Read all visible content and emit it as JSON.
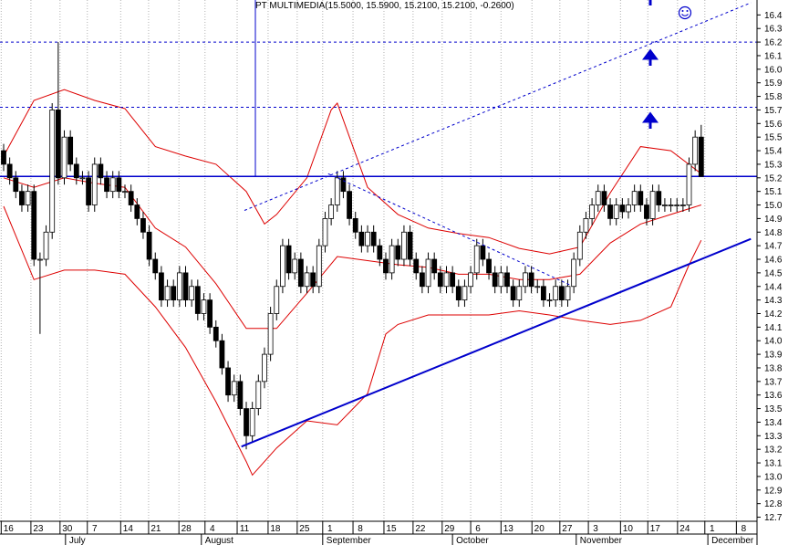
{
  "chart_data": {
    "type": "candlestick",
    "title": "PT MULTIMEDIA(15.5000, 15.5900, 15.2100, 15.2100, -0.2600)",
    "open": [
      15.4,
      15.3,
      15.2,
      15.1,
      15.0,
      15.1,
      14.6,
      14.6,
      14.8,
      15.7,
      15.2,
      15.5,
      15.3,
      15.2,
      15.2,
      15.0,
      15.3,
      15.2,
      15.1,
      15.2,
      15.1,
      15.1,
      15.0,
      14.9,
      14.8,
      14.6,
      14.5,
      14.3,
      14.4,
      14.3,
      14.5,
      14.3,
      14.4,
      14.2,
      14.3,
      14.1,
      14.0,
      13.8,
      13.6,
      13.7,
      13.5,
      13.3,
      13.5,
      13.7,
      13.9,
      14.2,
      14.4,
      14.7,
      14.5,
      14.6,
      14.4,
      14.5,
      14.4,
      14.7,
      14.9,
      15.0,
      15.2,
      15.1,
      14.9,
      14.8,
      14.7,
      14.8,
      14.7,
      14.6,
      14.5,
      14.7,
      14.6,
      14.8,
      14.6,
      14.5,
      14.4,
      14.6,
      14.5,
      14.4,
      14.5,
      14.4,
      14.3,
      14.4,
      14.5,
      14.7,
      14.6,
      14.5,
      14.4,
      14.5,
      14.4,
      14.3,
      14.4,
      14.5,
      14.4,
      14.4,
      14.3,
      14.3,
      14.4,
      14.3,
      14.4,
      14.6,
      14.8,
      14.9,
      15.0,
      15.1,
      15.0,
      14.9,
      15.0,
      14.95,
      15.0,
      15.1,
      15.0,
      14.9,
      15.1,
      15.0,
      15.0,
      15.0,
      15.0,
      15.0,
      15.3,
      15.5
    ],
    "high": [
      15.45,
      15.35,
      15.25,
      15.15,
      15.15,
      15.15,
      14.65,
      14.85,
      15.75,
      16.2,
      15.55,
      15.55,
      15.35,
      15.25,
      15.25,
      15.35,
      15.35,
      15.25,
      15.25,
      15.25,
      15.15,
      15.15,
      15.05,
      14.95,
      14.85,
      14.65,
      14.55,
      14.45,
      14.45,
      14.55,
      14.55,
      14.45,
      14.45,
      14.35,
      14.35,
      14.15,
      14.05,
      13.85,
      13.75,
      13.75,
      13.55,
      13.55,
      13.75,
      13.95,
      14.25,
      14.45,
      14.75,
      14.75,
      14.65,
      14.65,
      14.55,
      14.55,
      14.75,
      14.95,
      15.05,
      15.25,
      15.25,
      15.15,
      14.95,
      14.85,
      14.85,
      14.85,
      14.75,
      14.65,
      14.75,
      14.75,
      14.85,
      14.85,
      14.65,
      14.55,
      14.65,
      14.65,
      14.55,
      14.55,
      14.55,
      14.45,
      14.45,
      14.55,
      14.75,
      14.75,
      14.65,
      14.55,
      14.55,
      14.55,
      14.45,
      14.45,
      14.55,
      14.55,
      14.45,
      14.45,
      14.35,
      14.45,
      14.45,
      14.45,
      14.65,
      14.85,
      14.95,
      15.05,
      15.15,
      15.15,
      15.05,
      15.05,
      15.05,
      15.05,
      15.15,
      15.15,
      15.05,
      15.15,
      15.15,
      15.05,
      15.05,
      15.05,
      15.05,
      15.35,
      15.55,
      15.59
    ],
    "low": [
      15.25,
      15.15,
      15.05,
      14.95,
      14.95,
      14.55,
      14.05,
      14.55,
      14.75,
      15.15,
      15.15,
      15.25,
      15.15,
      15.15,
      14.95,
      14.95,
      15.15,
      15.05,
      15.05,
      15.05,
      15.05,
      14.95,
      14.85,
      14.75,
      14.55,
      14.45,
      14.25,
      14.25,
      14.25,
      14.25,
      14.25,
      14.25,
      14.15,
      14.15,
      14.05,
      13.95,
      13.75,
      13.55,
      13.55,
      13.45,
      13.2,
      13.25,
      13.45,
      13.65,
      13.85,
      14.15,
      14.35,
      14.45,
      14.45,
      14.35,
      14.35,
      14.35,
      14.35,
      14.65,
      14.85,
      14.95,
      15.05,
      14.85,
      14.75,
      14.65,
      14.65,
      14.65,
      14.55,
      14.45,
      14.45,
      14.55,
      14.55,
      14.55,
      14.45,
      14.35,
      14.35,
      14.45,
      14.35,
      14.35,
      14.35,
      14.25,
      14.25,
      14.35,
      14.45,
      14.55,
      14.45,
      14.35,
      14.35,
      14.35,
      14.25,
      14.25,
      14.35,
      14.35,
      14.35,
      14.25,
      14.25,
      14.25,
      14.25,
      14.25,
      14.35,
      14.55,
      14.75,
      14.85,
      14.95,
      14.95,
      14.85,
      14.85,
      14.9,
      14.9,
      14.95,
      14.95,
      14.85,
      14.85,
      14.95,
      14.95,
      14.95,
      14.95,
      14.95,
      14.95,
      15.25,
      15.21
    ],
    "close": [
      15.3,
      15.2,
      15.1,
      15.0,
      15.1,
      14.6,
      14.6,
      14.8,
      15.7,
      15.2,
      15.5,
      15.3,
      15.2,
      15.2,
      15.0,
      15.3,
      15.2,
      15.1,
      15.2,
      15.1,
      15.1,
      15.0,
      14.9,
      14.8,
      14.6,
      14.5,
      14.3,
      14.4,
      14.3,
      14.5,
      14.3,
      14.4,
      14.2,
      14.3,
      14.1,
      14.0,
      13.8,
      13.6,
      13.7,
      13.5,
      13.3,
      13.5,
      13.7,
      13.9,
      14.2,
      14.4,
      14.7,
      14.5,
      14.6,
      14.4,
      14.5,
      14.4,
      14.7,
      14.9,
      15.0,
      15.2,
      15.1,
      14.9,
      14.8,
      14.7,
      14.8,
      14.7,
      14.6,
      14.5,
      14.7,
      14.6,
      14.8,
      14.6,
      14.5,
      14.4,
      14.6,
      14.5,
      14.4,
      14.5,
      14.4,
      14.3,
      14.4,
      14.5,
      14.7,
      14.6,
      14.5,
      14.4,
      14.5,
      14.4,
      14.3,
      14.4,
      14.5,
      14.4,
      14.4,
      14.3,
      14.3,
      14.4,
      14.3,
      14.4,
      14.6,
      14.8,
      14.9,
      15.0,
      15.1,
      15.0,
      14.9,
      15.0,
      14.95,
      15.0,
      15.1,
      15.0,
      14.9,
      15.1,
      15.0,
      15.0,
      15.0,
      15.0,
      15.0,
      15.3,
      15.5,
      15.21
    ],
    "up_color": "#ffffff",
    "down_color": "#000000",
    "xlim": [
      -0.6,
      124.2
    ],
    "ylim": [
      12.67,
      16.51
    ],
    "yticks": [
      16.4,
      16.3,
      16.2,
      16.1,
      {
        "value": 16,
        "label": "16.0"
      },
      15.9,
      15.8,
      15.7,
      15.6,
      15.5,
      15.4,
      15.3,
      15.2,
      15.1,
      {
        "value": 15,
        "label": "15.0"
      },
      14.9,
      14.8,
      14.7,
      14.6,
      14.5,
      14.4,
      14.3,
      14.2,
      14.1,
      {
        "value": 14,
        "label": "14.0"
      },
      13.9,
      13.8,
      13.7,
      13.6,
      13.5,
      13.4,
      13.3,
      13.2,
      13.1,
      {
        "value": 13,
        "label": "13.0"
      },
      12.9,
      12.8,
      12.7
    ],
    "xticks": [
      {
        "value": 0.8,
        "label": "16"
      },
      {
        "value": 5.7,
        "label": "23"
      },
      {
        "value": 10.5,
        "label": "30"
      },
      {
        "value": 15.0,
        "label": "7"
      },
      {
        "value": 20.5,
        "label": "14"
      },
      {
        "value": 25.1,
        "label": "21"
      },
      {
        "value": 30.1,
        "label": "28"
      },
      {
        "value": 34.4,
        "label": "4"
      },
      {
        "value": 39.7,
        "label": "11"
      },
      {
        "value": 44.8,
        "label": "18"
      },
      {
        "value": 49.6,
        "label": "25"
      },
      {
        "value": 53.8,
        "label": "1"
      },
      {
        "value": 58.8,
        "label": "8"
      },
      {
        "value": 63.9,
        "label": "15"
      },
      {
        "value": 68.7,
        "label": "22"
      },
      {
        "value": 73.5,
        "label": "29"
      },
      {
        "value": 78.2,
        "label": "6"
      },
      {
        "value": 83.2,
        "label": "13"
      },
      {
        "value": 88.3,
        "label": "20"
      },
      {
        "value": 92.9,
        "label": "27"
      },
      {
        "value": 97.6,
        "label": "3"
      },
      {
        "value": 102.9,
        "label": "10"
      },
      {
        "value": 107.4,
        "label": "17"
      },
      {
        "value": 112.3,
        "label": "24"
      },
      {
        "value": 116.8,
        "label": "1"
      },
      {
        "value": 122.0,
        "label": "8"
      }
    ],
    "months": [
      {
        "value": 10.8,
        "label": "July"
      },
      {
        "value": 33.2,
        "label": "August"
      },
      {
        "value": 53.2,
        "label": "September"
      },
      {
        "value": 74.6,
        "label": "October"
      },
      {
        "value": 95.0,
        "label": "November"
      },
      {
        "value": 116.7,
        "label": "December"
      }
    ],
    "grid": true,
    "bands": [
      {
        "color": "#dd0000",
        "x": [
          0,
          5,
          10,
          15,
          20,
          25,
          30,
          35,
          40,
          43,
          45,
          50,
          54,
          55,
          60,
          65,
          70,
          75,
          80,
          85,
          90,
          95,
          100,
          105,
          110,
          115
        ],
        "values": [
          15.36,
          15.77,
          15.85,
          15.77,
          15.71,
          15.43,
          15.36,
          15.3,
          15.1,
          14.86,
          14.93,
          15.2,
          15.7,
          15.75,
          15.13,
          14.93,
          14.83,
          14.79,
          14.76,
          14.68,
          14.64,
          14.69,
          15.09,
          15.43,
          15.4,
          15.23
        ]
      },
      {
        "color": "#dd0000",
        "x": [
          0,
          5,
          10,
          15,
          20,
          25,
          30,
          35,
          40,
          45,
          50,
          55,
          60,
          65,
          70,
          75,
          80,
          85,
          90,
          95,
          100,
          105,
          110,
          115
        ],
        "values": [
          15.2,
          15.13,
          15.2,
          15.16,
          15.13,
          14.83,
          14.69,
          14.42,
          14.09,
          14.09,
          14.35,
          14.62,
          14.59,
          14.56,
          14.54,
          14.49,
          14.49,
          14.45,
          14.45,
          14.49,
          14.72,
          14.86,
          14.93,
          15.0
        ]
      },
      {
        "color": "#dd0000",
        "x": [
          0,
          5,
          10,
          15,
          20,
          25,
          30,
          35,
          40,
          41,
          45,
          50,
          55,
          60,
          63,
          65,
          70,
          75,
          80,
          85,
          90,
          95,
          100,
          105,
          110,
          113,
          115
        ],
        "values": [
          14.99,
          14.45,
          14.52,
          14.52,
          14.49,
          14.25,
          13.95,
          13.55,
          13.11,
          13.01,
          13.21,
          13.41,
          13.38,
          13.61,
          14.05,
          14.12,
          14.19,
          14.19,
          14.19,
          14.22,
          14.19,
          14.15,
          14.12,
          14.15,
          14.25,
          14.56,
          14.74
        ]
      }
    ],
    "hlines": [
      {
        "value": 16.2,
        "style": "dashed",
        "color": "#0000cc"
      },
      {
        "value": 15.72,
        "style": "dashed",
        "color": "#0000cc"
      },
      {
        "value": 15.21,
        "style": "solid",
        "color": "#0000cc"
      }
    ],
    "trendlines": [
      {
        "x": [
          39.2,
          123.2
        ],
        "values": [
          13.22,
          14.75
        ],
        "style": "solid",
        "color": "#0000cc"
      },
      {
        "x": [
          39.7,
          123.2
        ],
        "values": [
          14.96,
          16.49
        ],
        "style": "dashed",
        "color": "#0000cc"
      },
      {
        "x": [
          53.5,
          93.4
        ],
        "values": [
          15.23,
          14.41
        ],
        "style": "dashed",
        "color": "#0000cc"
      },
      {
        "x": [
          41.5,
          41.5
        ],
        "values": [
          15.21,
          16.51
        ],
        "style": "thin",
        "color": "#0000cc"
      }
    ]
  }
}
